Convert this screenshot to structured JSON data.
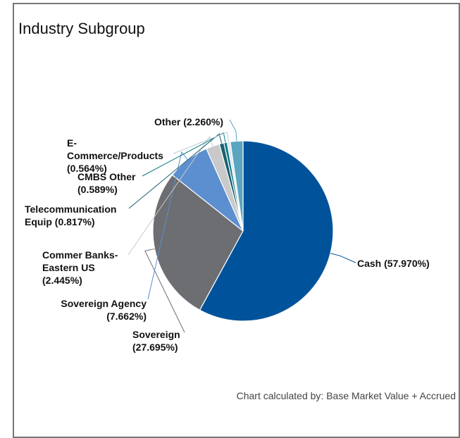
{
  "chart_data": {
    "type": "pie",
    "title": "Industry Subgroup",
    "footnote": "Chart calculated by: Base Market Value + Accrued",
    "categories": [
      "Cash",
      "Sovereign",
      "Sovereign Agency",
      "Commer Banks-Eastern US",
      "Telecommunication Equip",
      "CMBS Other",
      "E-Commerce/Products",
      "Other"
    ],
    "values": [
      57.97,
      27.695,
      7.662,
      2.445,
      0.817,
      0.589,
      0.564,
      2.26
    ],
    "value_labels": [
      "(57.970%)",
      "(27.695%)",
      "(7.662%)",
      "(2.445%)",
      "(0.817%)",
      "(0.589%)",
      "(0.564%)",
      "(2.260%)"
    ],
    "colors": [
      "#00539b",
      "#6d6e71",
      "#5b8fd0",
      "#c9c9c9",
      "#1b5f6e",
      "#0d7c8a",
      "#dce8ef",
      "#5aa5c0"
    ]
  }
}
